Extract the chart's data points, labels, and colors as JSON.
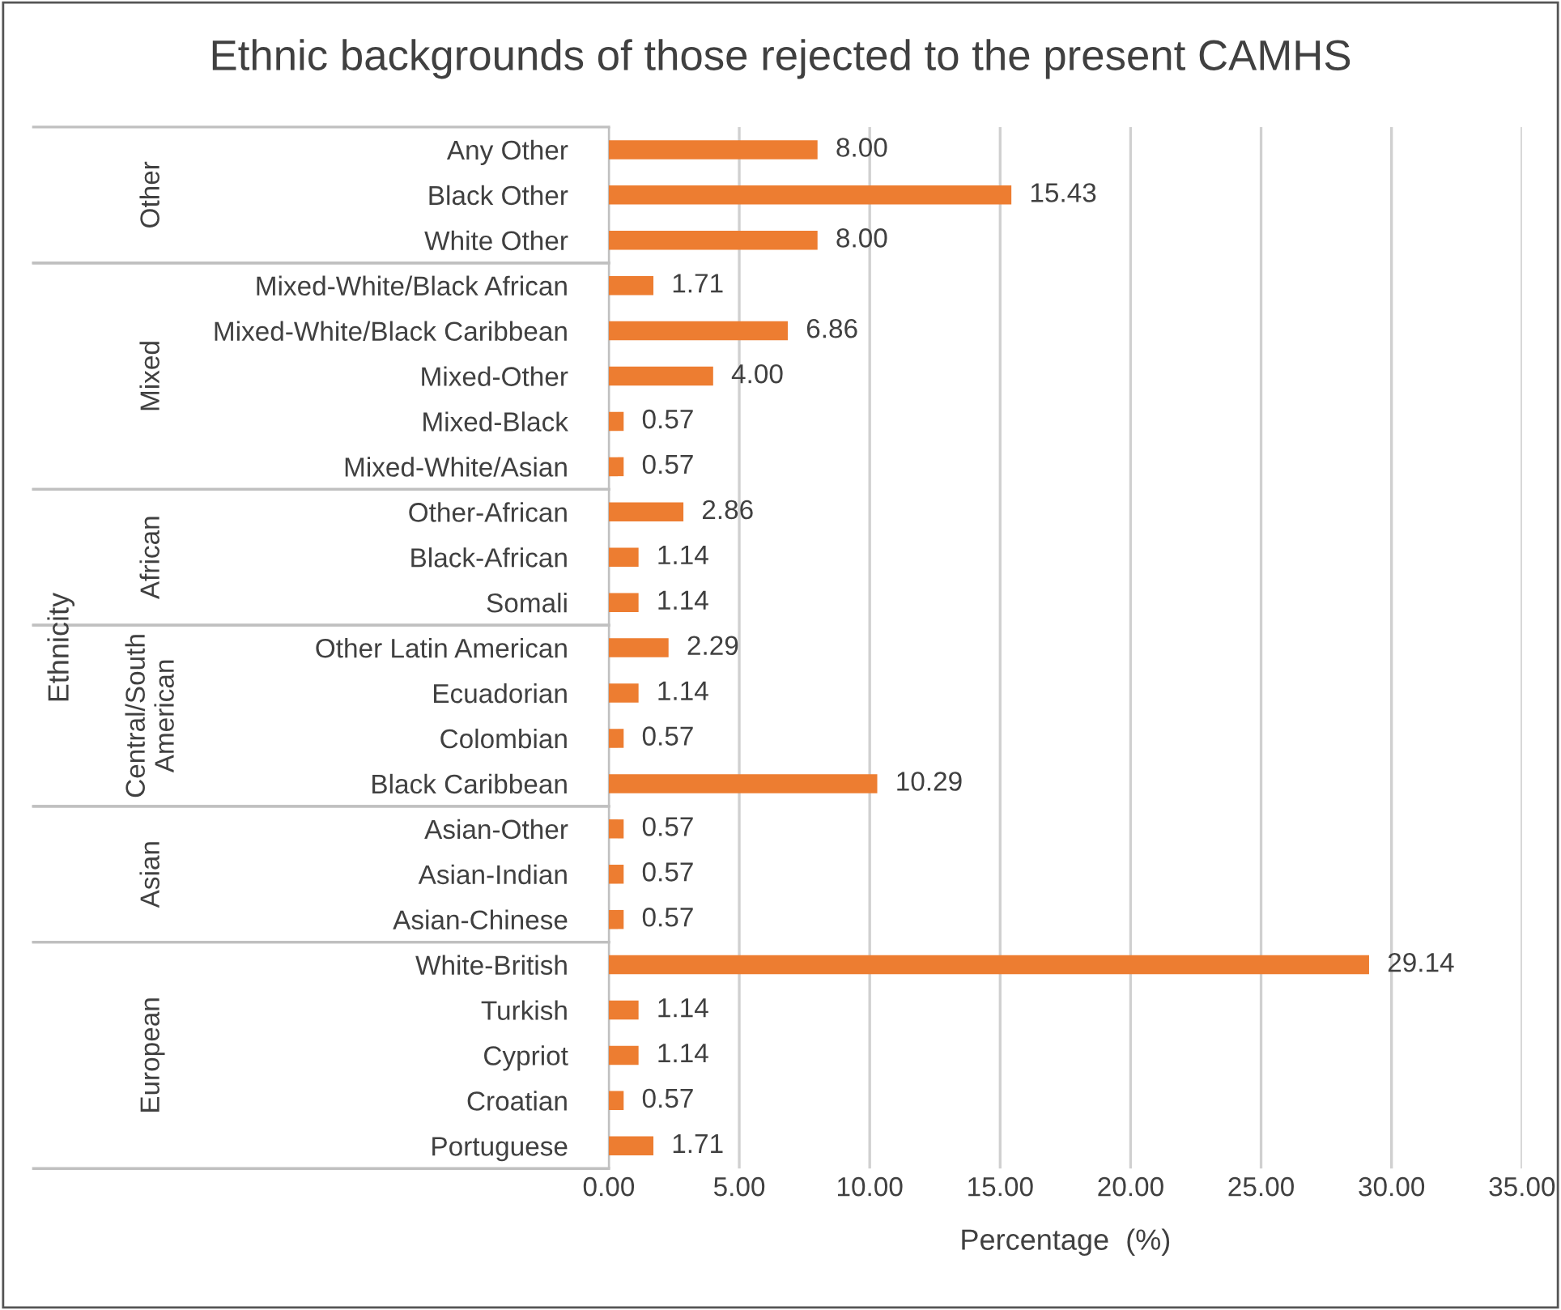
{
  "chart_data": {
    "type": "bar",
    "orientation": "horizontal",
    "title": "Ethnic backgrounds of those rejected to the present CAMHS",
    "xlabel": "Percentage  (%)",
    "categories": [
      "Any Other",
      "Black Other",
      "White Other",
      "Mixed-White/Black African",
      "Mixed-White/Black Caribbean",
      "Mixed-Other",
      "Mixed-Black",
      "Mixed-White/Asian",
      "Other-African",
      "Black-African",
      "Somali",
      "Other Latin American",
      "Ecuadorian",
      "Colombian",
      "Black Caribbean",
      "Asian-Other",
      "Asian-Indian",
      "Asian-Chinese",
      "White-British",
      "Turkish",
      "Cypriot",
      "Croatian",
      "Portuguese"
    ],
    "values": [
      8.0,
      15.43,
      8.0,
      1.71,
      6.86,
      4.0,
      0.57,
      0.57,
      2.86,
      1.14,
      1.14,
      2.29,
      1.14,
      0.57,
      10.29,
      0.57,
      0.57,
      0.57,
      29.14,
      1.14,
      1.14,
      0.57,
      1.71
    ],
    "value_labels": [
      "8.00",
      "15.43",
      "8.00",
      "1.71",
      "6.86",
      "4.00",
      "0.57",
      "0.57",
      "2.86",
      "1.14",
      "1.14",
      "2.29",
      "1.14",
      "0.57",
      "10.29",
      "0.57",
      "0.57",
      "0.57",
      "29.14",
      "1.14",
      "1.14",
      "0.57",
      "1.71"
    ],
    "color": "#ed7d31",
    "xlim": [
      0,
      35
    ],
    "xticks": [
      {
        "value": 0,
        "label": "0.00"
      },
      {
        "value": 5,
        "label": "5.00"
      },
      {
        "value": 10,
        "label": "10.00"
      },
      {
        "value": 15,
        "label": "15.00"
      },
      {
        "value": 20,
        "label": "20.00"
      },
      {
        "value": 25,
        "label": "25.00"
      },
      {
        "value": 30,
        "label": "30.00"
      },
      {
        "value": 35,
        "label": "35.00"
      }
    ],
    "grid": "x",
    "annotations": [
      "Ethnicity",
      "Other",
      "Mixed",
      "African",
      "Central/South\nAmerican",
      "Asian",
      "European"
    ]
  }
}
